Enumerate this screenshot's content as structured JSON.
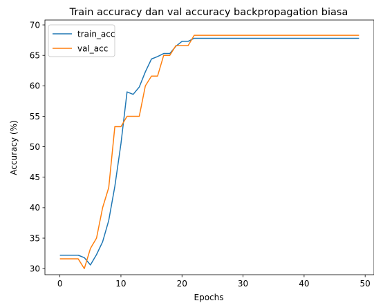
{
  "chart_data": {
    "type": "line",
    "title": "Train accuracy dan val accuracy backpropagation biasa",
    "xlabel": "Epochs",
    "ylabel": "Accuracy (%)",
    "xlim": [
      -2.45,
      51.45
    ],
    "ylim": [
      29.0,
      70.8
    ],
    "xticks": [
      0,
      10,
      20,
      30,
      40,
      50
    ],
    "xtick_labels": [
      "0",
      "10",
      "20",
      "30",
      "40",
      "50"
    ],
    "yticks": [
      30,
      35,
      40,
      45,
      50,
      55,
      60,
      65,
      70
    ],
    "ytick_labels": [
      "30",
      "35",
      "40",
      "45",
      "50",
      "55",
      "60",
      "65",
      "70"
    ],
    "grid": false,
    "legend_position": "top-left",
    "series": [
      {
        "name": "train_acc",
        "color": "#1f77b4",
        "values": [
          32.2,
          32.2,
          32.2,
          32.2,
          31.8,
          30.6,
          32.3,
          34.4,
          37.9,
          43.5,
          50.5,
          59.0,
          58.6,
          59.8,
          62.3,
          64.4,
          64.8,
          65.3,
          65.3,
          66.5,
          67.3,
          67.3,
          67.8,
          67.8,
          67.8,
          67.8,
          67.8,
          67.8,
          67.8,
          67.8,
          67.8,
          67.8,
          67.8,
          67.8,
          67.8,
          67.8,
          67.8,
          67.8,
          67.8,
          67.8,
          67.8,
          67.8,
          67.8,
          67.8,
          67.8,
          67.8,
          67.8,
          67.8,
          67.8,
          67.8
        ]
      },
      {
        "name": "val_acc",
        "color": "#ff7f0e",
        "values": [
          31.6,
          31.6,
          31.6,
          31.6,
          30.0,
          33.3,
          35.0,
          40.0,
          43.3,
          53.3,
          53.3,
          55.0,
          55.0,
          55.0,
          60.0,
          61.6,
          61.6,
          65.0,
          65.0,
          66.6,
          66.6,
          66.6,
          68.3,
          68.3,
          68.3,
          68.3,
          68.3,
          68.3,
          68.3,
          68.3,
          68.3,
          68.3,
          68.3,
          68.3,
          68.3,
          68.3,
          68.3,
          68.3,
          68.3,
          68.3,
          68.3,
          68.3,
          68.3,
          68.3,
          68.3,
          68.3,
          68.3,
          68.3,
          68.3,
          68.3
        ]
      }
    ]
  }
}
